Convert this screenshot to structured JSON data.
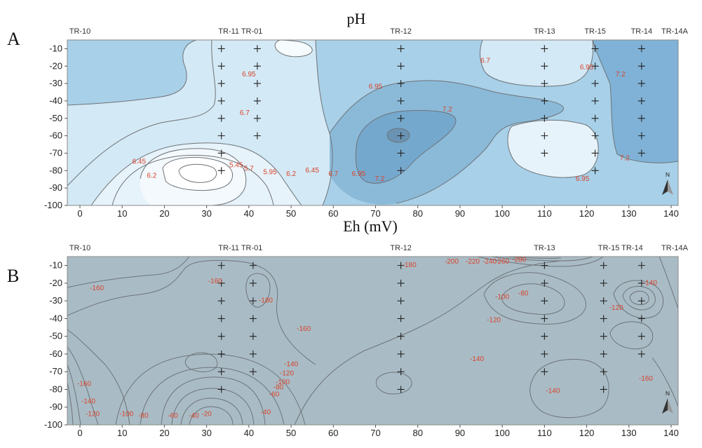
{
  "chart_data": [
    {
      "panel": "A",
      "type": "contour",
      "title": "pH",
      "xlim": [
        0,
        140
      ],
      "ylim": [
        -100,
        -5
      ],
      "xticks": [
        0,
        10,
        20,
        30,
        40,
        50,
        60,
        70,
        80,
        90,
        100,
        110,
        120,
        130,
        140
      ],
      "yticks": [
        -10,
        -20,
        -30,
        -40,
        -50,
        -60,
        -70,
        -80,
        -90,
        -100
      ],
      "wells": [
        {
          "name": "TR-10",
          "x": 0
        },
        {
          "name": "TR-11 TR-01",
          "x": 38
        },
        {
          "name": "TR-12",
          "x": 76
        },
        {
          "name": "TR-13",
          "x": 110
        },
        {
          "name": "TR-15",
          "x": 122
        },
        {
          "name": "TR-14",
          "x": 133
        },
        {
          "name": "TR-14A",
          "x": 142
        }
      ],
      "sample_points": [
        {
          "x": 33.5,
          "depths": [
            -10,
            -20,
            -30,
            -40,
            -50,
            -60,
            -70,
            -80
          ]
        },
        {
          "x": 42,
          "depths": [
            -10,
            -20,
            -30,
            -40,
            -50,
            -60
          ]
        },
        {
          "x": 76,
          "depths": [
            -10,
            -20,
            -30,
            -40,
            -50,
            -60,
            -70,
            -80
          ]
        },
        {
          "x": 110,
          "depths": [
            -10,
            -20,
            -30,
            -40,
            -50,
            -60,
            -70
          ]
        },
        {
          "x": 122,
          "depths": [
            -10,
            -20,
            -30,
            -40,
            -50,
            -60,
            -70,
            -80
          ]
        },
        {
          "x": 133,
          "depths": [
            -10,
            -20,
            -30,
            -40,
            -50,
            -60,
            -70
          ]
        }
      ],
      "contour_labels": [
        {
          "text": "6.95",
          "x": 40,
          "y": -26
        },
        {
          "text": "6.7",
          "x": 39,
          "y": -48
        },
        {
          "text": "6.45",
          "x": 14,
          "y": -76
        },
        {
          "text": "6.2",
          "x": 17,
          "y": -84
        },
        {
          "text": "5.45",
          "x": 37,
          "y": -78
        },
        {
          "text": "5.7",
          "x": 40,
          "y": -80
        },
        {
          "text": "5.95",
          "x": 45,
          "y": -82
        },
        {
          "text": "6.2",
          "x": 50,
          "y": -83
        },
        {
          "text": "6.45",
          "x": 55,
          "y": -81
        },
        {
          "text": "6.7",
          "x": 60,
          "y": -83
        },
        {
          "text": "6.95",
          "x": 66,
          "y": -83
        },
        {
          "text": "7.2",
          "x": 71,
          "y": -86
        },
        {
          "text": "6.95",
          "x": 70,
          "y": -33
        },
        {
          "text": "7.2",
          "x": 87,
          "y": -46
        },
        {
          "text": "6.7",
          "x": 96,
          "y": -18
        },
        {
          "text": "6.95",
          "x": 120,
          "y": -22
        },
        {
          "text": "7.2",
          "x": 128,
          "y": -26
        },
        {
          "text": "7.2",
          "x": 129,
          "y": -74
        },
        {
          "text": "6.95",
          "x": 119,
          "y": -86
        }
      ]
    },
    {
      "panel": "B",
      "type": "contour",
      "title": "Eh (mV)",
      "xlim": [
        0,
        140
      ],
      "ylim": [
        -100,
        -5
      ],
      "xticks": [
        0,
        10,
        20,
        30,
        40,
        50,
        60,
        70,
        80,
        90,
        100,
        110,
        120,
        130,
        140
      ],
      "yticks": [
        -10,
        -20,
        -30,
        -40,
        -50,
        -60,
        -70,
        -80,
        -90,
        -100
      ],
      "wells": [
        {
          "name": "TR-10",
          "x": 0
        },
        {
          "name": "TR-11 TR-01",
          "x": 38
        },
        {
          "name": "TR-12",
          "x": 76
        },
        {
          "name": "TR-13",
          "x": 110
        },
        {
          "name": "TR-15 TR-14",
          "x": 128
        },
        {
          "name": "TR-14A",
          "x": 142
        }
      ],
      "sample_points": [
        {
          "x": 33.5,
          "depths": [
            -10,
            -20,
            -30,
            -40,
            -50,
            -60,
            -70,
            -80
          ]
        },
        {
          "x": 41,
          "depths": [
            -10,
            -20,
            -30,
            -40,
            -50,
            -60,
            -70
          ]
        },
        {
          "x": 76,
          "depths": [
            -10,
            -20,
            -30,
            -40,
            -50,
            -60,
            -70,
            -80
          ]
        },
        {
          "x": 110,
          "depths": [
            -10,
            -20,
            -30,
            -40,
            -50,
            -60,
            -70
          ]
        },
        {
          "x": 124,
          "depths": [
            -10,
            -20,
            -30,
            -40,
            -50,
            -60,
            -70,
            -80
          ]
        },
        {
          "x": 133,
          "depths": [
            -10,
            -20,
            -30,
            -40,
            -50,
            -60
          ]
        }
      ],
      "contour_labels": [
        {
          "text": "-160",
          "x": 4,
          "y": -24
        },
        {
          "text": "-160",
          "x": 32,
          "y": -20
        },
        {
          "text": "-180",
          "x": 44,
          "y": -31
        },
        {
          "text": "-160",
          "x": 53,
          "y": -47
        },
        {
          "text": "-140",
          "x": 50,
          "y": -67
        },
        {
          "text": "-120",
          "x": 49,
          "y": -72
        },
        {
          "text": "-100",
          "x": 48,
          "y": -77
        },
        {
          "text": "-80",
          "x": 47,
          "y": -80
        },
        {
          "text": "-60",
          "x": 46,
          "y": -84
        },
        {
          "text": "-40",
          "x": 44,
          "y": -94
        },
        {
          "text": "-20",
          "x": 30,
          "y": -95
        },
        {
          "text": "-160",
          "x": 1,
          "y": -78
        },
        {
          "text": "-140",
          "x": 2,
          "y": -88
        },
        {
          "text": "-120",
          "x": 3,
          "y": -95
        },
        {
          "text": "-100",
          "x": 11,
          "y": -95
        },
        {
          "text": "-80",
          "x": 15,
          "y": -96
        },
        {
          "text": "-60",
          "x": 22,
          "y": -96
        },
        {
          "text": "-40",
          "x": 27,
          "y": -96
        },
        {
          "text": "-180",
          "x": 78,
          "y": -11
        },
        {
          "text": "-200",
          "x": 88,
          "y": -9
        },
        {
          "text": "-220",
          "x": 93,
          "y": -9
        },
        {
          "text": "-240",
          "x": 97,
          "y": -9
        },
        {
          "text": "-260",
          "x": 100,
          "y": -9
        },
        {
          "text": "-280",
          "x": 104,
          "y": -8
        },
        {
          "text": "-100",
          "x": 100,
          "y": -29
        },
        {
          "text": "-80",
          "x": 105,
          "y": -27
        },
        {
          "text": "-120",
          "x": 98,
          "y": -42
        },
        {
          "text": "-140",
          "x": 94,
          "y": -64
        },
        {
          "text": "-140",
          "x": 135,
          "y": -21
        },
        {
          "text": "-120",
          "x": 127,
          "y": -35
        },
        {
          "text": "-160",
          "x": 134,
          "y": -75
        },
        {
          "text": "-140",
          "x": 112,
          "y": -82
        }
      ]
    }
  ],
  "labels": {
    "panel_a": "A",
    "panel_b": "B"
  }
}
